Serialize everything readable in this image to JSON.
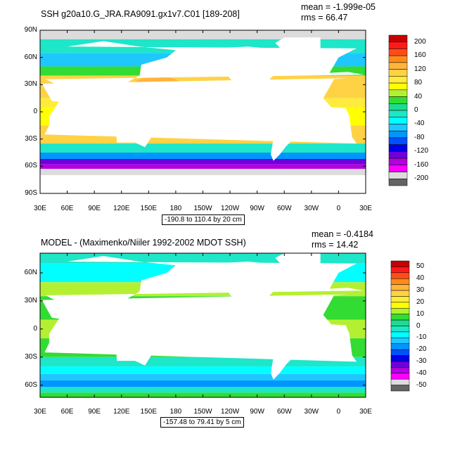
{
  "chart_data": [
    {
      "type": "heatmap",
      "title": "SSH g20a10.G_JRA.RA9091.gx1v7.C01 [189-208]",
      "stats": {
        "mean": "mean = -1.999e-05",
        "rms": "rms = 66.47"
      },
      "x_tick_labels": [
        "30E",
        "60E",
        "90E",
        "120E",
        "150E",
        "180",
        "150W",
        "120W",
        "90W",
        "60W",
        "30W",
        "0",
        "30E"
      ],
      "y_tick_labels": [
        "90N",
        "60N",
        "30N",
        "0",
        "30S",
        "60S",
        "90S"
      ],
      "y_tick_values": [
        90,
        60,
        30,
        0,
        -30,
        -60,
        -90
      ],
      "ylim": [
        -90,
        90
      ],
      "colorbar": {
        "labels": [
          "200",
          "160",
          "120",
          "80",
          "40",
          "0",
          "-40",
          "-80",
          "-120",
          "-160",
          "-200"
        ],
        "colors": [
          "#c80000",
          "#ff1a1a",
          "#ff4d1a",
          "#ff8c1a",
          "#ffb43c",
          "#ffd246",
          "#ffeb3c",
          "#ffff00",
          "#b4f032",
          "#32dc32",
          "#1edc8c",
          "#1ee6c8",
          "#00ffff",
          "#1ec8ff",
          "#0096ff",
          "#0050ff",
          "#0000e6",
          "#6e00dc",
          "#b400dc",
          "#ff00ff",
          "#dcdcdc",
          "#646464"
        ]
      },
      "range_label": "-190.8 to 110.4 by 20 cm"
    },
    {
      "type": "heatmap",
      "title": "MODEL - (Maximenko/Niiler 1992-2002 MDOT SSH)",
      "stats": {
        "mean": "mean = -0.4184",
        "rms": "rms = 14.42"
      },
      "x_tick_labels": [
        "30E",
        "60E",
        "90E",
        "120E",
        "150E",
        "180",
        "150W",
        "120W",
        "90W",
        "60W",
        "30W",
        "0",
        "30E"
      ],
      "y_tick_labels": [
        "60N",
        "30N",
        "0",
        "30S",
        "60S"
      ],
      "y_tick_values": [
        60,
        30,
        0,
        -30,
        -60
      ],
      "ylim": [
        -73,
        81
      ],
      "colorbar": {
        "labels": [
          "50",
          "40",
          "30",
          "20",
          "10",
          "0",
          "-10",
          "-20",
          "-30",
          "-40",
          "-50"
        ],
        "colors": [
          "#c80000",
          "#ff1a1a",
          "#ff4d1a",
          "#ff8c1a",
          "#ffb43c",
          "#ffd246",
          "#ffeb3c",
          "#ffff00",
          "#b4f032",
          "#32dc32",
          "#1edc8c",
          "#1ee6c8",
          "#00ffff",
          "#1ec8ff",
          "#0096ff",
          "#0050ff",
          "#0000e6",
          "#6e00dc",
          "#b400dc",
          "#ff00ff",
          "#dcdcdc",
          "#646464"
        ]
      },
      "range_label": "-157.48 to 79.41 by 5 cm"
    }
  ]
}
